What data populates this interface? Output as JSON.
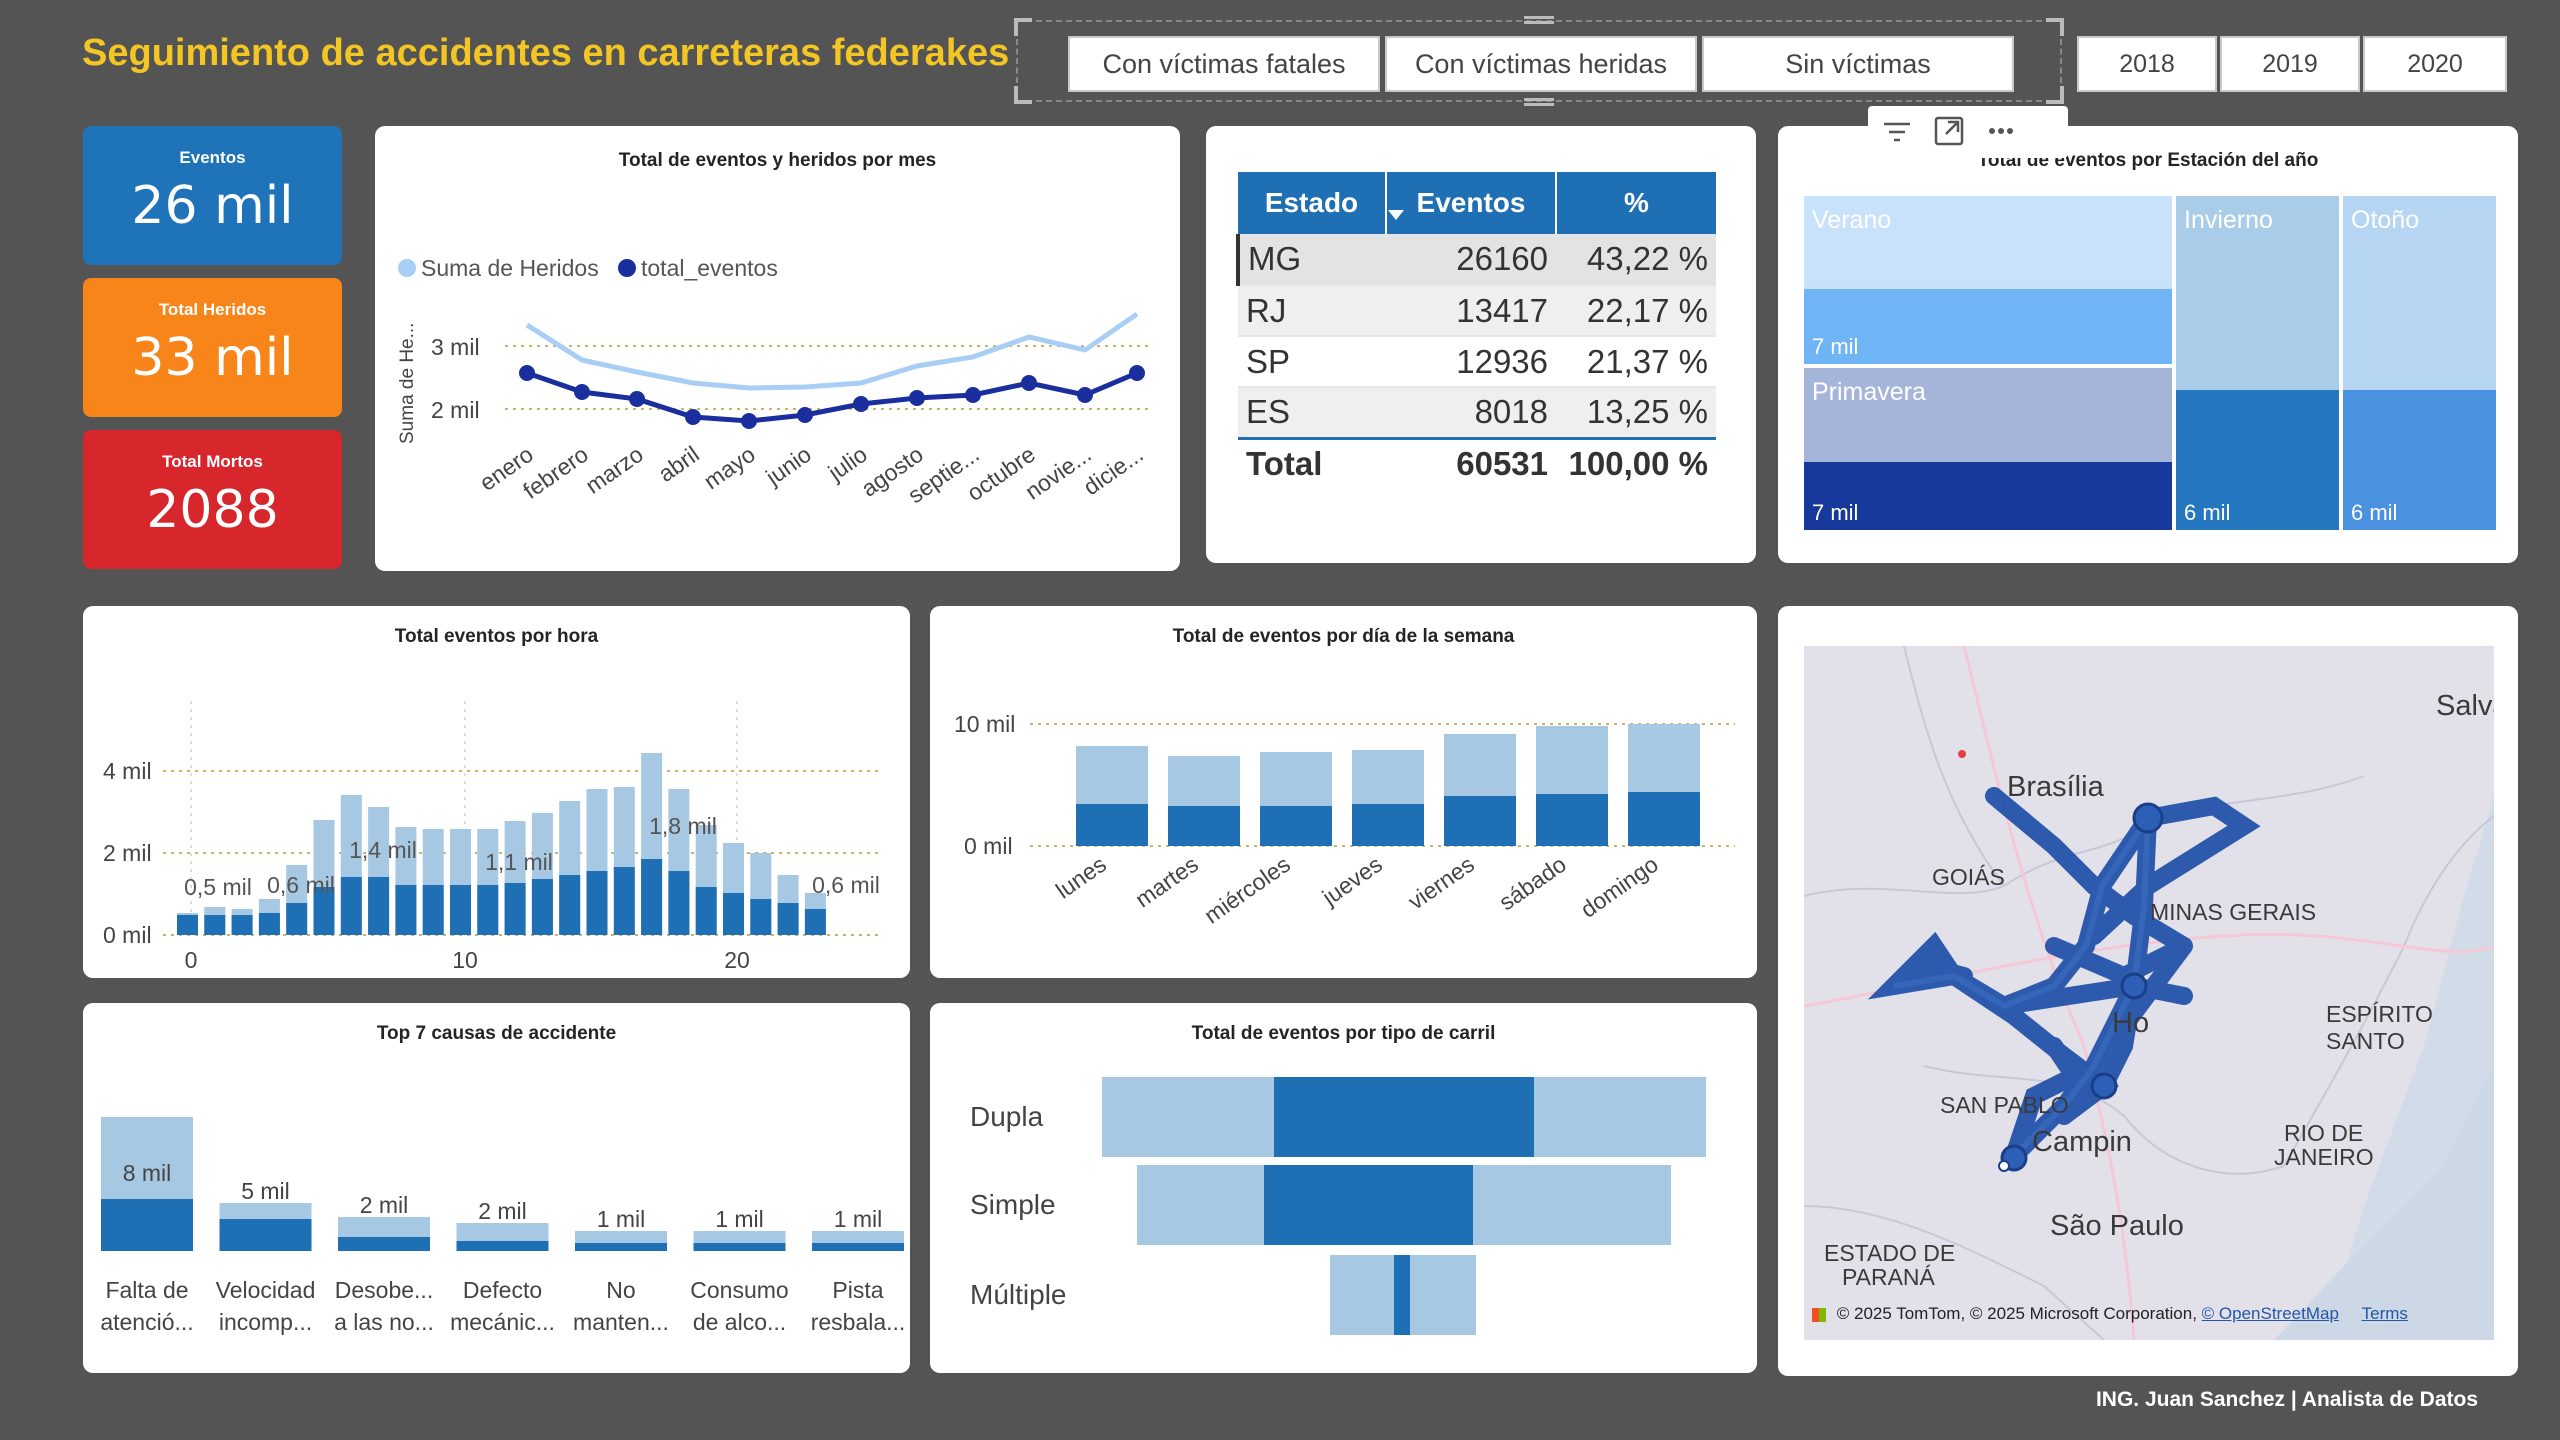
{
  "header": {
    "title": "Seguimiento de accidentes en carreteras federakes",
    "author": "ING. Juan Sanchez | Analista de Datos"
  },
  "slicers": {
    "victims": [
      "Con víctimas fatales",
      "Con víctimas heridas",
      "Sin víctimas"
    ],
    "years": [
      "2018",
      "2019",
      "2020"
    ]
  },
  "kpis": [
    {
      "label": "Eventos",
      "value": "26 mil",
      "color": "#1f73b8"
    },
    {
      "label": "Total Heridos",
      "value": "33 mil",
      "color": "#f8851a"
    },
    {
      "label": "Total Mortos",
      "value": "2088",
      "color": "#d7262c"
    }
  ],
  "colors": {
    "dark": "#1a2e9e",
    "light": "#a8cef5",
    "bar_dark": "#1f6fb5",
    "bar_light": "#a6c8e3"
  },
  "monthly": {
    "title": "Total de eventos y heridos por mes",
    "legend": [
      "Suma de Heridos",
      "total_eventos"
    ],
    "ylabel": "Suma de He...",
    "yticks": [
      "3 mil",
      "2 mil"
    ],
    "months": [
      "enero",
      "febrero",
      "marzo",
      "abril",
      "mayo",
      "junio",
      "julio",
      "agosto",
      "septie...",
      "octubre",
      "novie...",
      "dicie..."
    ]
  },
  "state_table": {
    "headers": [
      "Estado",
      "Eventos",
      "%"
    ],
    "rows": [
      {
        "estado": "MG",
        "eventos": "26160",
        "pct": "43,22 %"
      },
      {
        "estado": "RJ",
        "eventos": "13417",
        "pct": "22,17 %"
      },
      {
        "estado": "SP",
        "eventos": "12936",
        "pct": "21,37 %"
      },
      {
        "estado": "ES",
        "eventos": "8018",
        "pct": "13,25 %"
      }
    ],
    "total": {
      "estado": "Total",
      "eventos": "60531",
      "pct": "100,00 %"
    }
  },
  "season": {
    "title": "Total de eventos por Estación del año",
    "cells": [
      {
        "label": "Verano",
        "value": "7 mil"
      },
      {
        "label": "Invierno",
        "value": "6 mil"
      },
      {
        "label": "Otoño",
        "value": "6 mil"
      },
      {
        "label": "Primavera",
        "value": "7 mil"
      }
    ]
  },
  "hourly": {
    "title": "Total eventos por hora",
    "yticks": [
      "4 mil",
      "2 mil",
      "0 mil"
    ],
    "xticks": [
      "0",
      "10",
      "20"
    ],
    "labels": [
      "0,5 mil",
      "0,6 mil",
      "1,4 mil",
      "1,1 mil",
      "1,8 mil",
      "0,6 mil"
    ]
  },
  "weekday": {
    "title": "Total de eventos por día de la semana",
    "yticks": [
      "10 mil",
      "0 mil"
    ],
    "days": [
      "lunes",
      "martes",
      "miércoles",
      "jueves",
      "viernes",
      "sábado",
      "domingo"
    ]
  },
  "causes": {
    "title": "Top 7 causas de accidente",
    "items": [
      {
        "l1": "Falta de",
        "l2": "atenció...",
        "value": "8 mil"
      },
      {
        "l1": "Velocidad",
        "l2": "incomp...",
        "value": "5 mil"
      },
      {
        "l1": "Desobe...",
        "l2": "a las no...",
        "value": "2 mil"
      },
      {
        "l1": "Defecto",
        "l2": "mecánic...",
        "value": "2 mil"
      },
      {
        "l1": "No",
        "l2": "manten...",
        "value": "1 mil"
      },
      {
        "l1": "Consumo",
        "l2": "de alco...",
        "value": "1 mil"
      },
      {
        "l1": "Pista",
        "l2": "resbala...",
        "value": "1 mil"
      }
    ]
  },
  "lanes": {
    "title": "Total de eventos por tipo de carril",
    "items": [
      "Dupla",
      "Simple",
      "Múltiple"
    ]
  },
  "map": {
    "labels": [
      "Brasília",
      "Salva",
      "GOIÁS",
      "MINAS GERAIS",
      "Ho",
      "SAN PABLO",
      "Campin",
      "RIO DE",
      "JANEIRO",
      "São Paulo",
      "ESTADO DE",
      "PARANÁ",
      "ESPÍRITO SANTO"
    ],
    "attribution": "© 2025 TomTom, © 2025 Microsoft Corporation,",
    "osm": "© OpenStreetMap",
    "terms": "Terms"
  }
}
